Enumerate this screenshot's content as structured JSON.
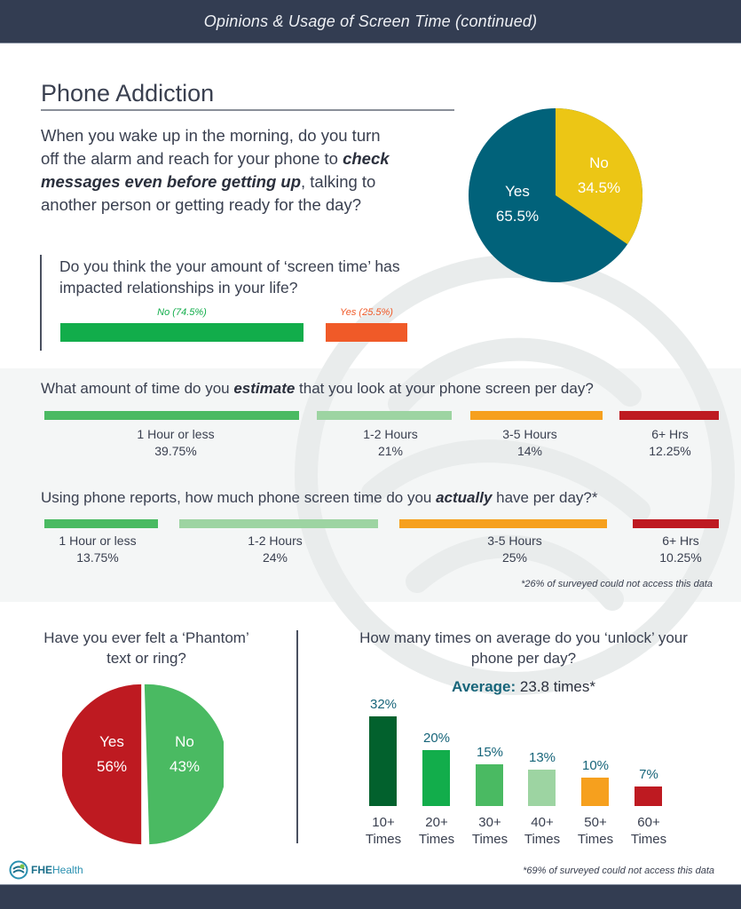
{
  "header": {
    "title": "Opinions & Usage of Screen Time (continued)"
  },
  "section": {
    "title": "Phone Addiction"
  },
  "wake_question": {
    "text_before": "When you wake up in the morning, do you turn off the alarm and reach for your phone to ",
    "emphasis": "check messages even before getting up",
    "text_after": ", talking to another person or getting ready for the day?"
  },
  "relationships_question": {
    "text": "Do you think the your amount of ‘screen time’ has impacted relationships in your life?",
    "no_label": "No (74.5%)",
    "yes_label": "Yes (25.5%)"
  },
  "estimate_question": {
    "text_before": "What amount of time do you ",
    "emphasis": "estimate",
    "text_after": " that you look at your phone screen per day?"
  },
  "actual_question": {
    "text_before": "Using phone reports, how much phone screen time do you ",
    "emphasis": "actually",
    "text_after": " have per day?*",
    "footnote": "*26% of surveyed could not access this data"
  },
  "phantom_question": {
    "text": "Have you ever felt a ‘Phantom’ text or ring?"
  },
  "unlock_question": {
    "text": "How many times on average do you ‘unlock’ your phone per day?",
    "average_key": "Average:",
    "average_value": " 23.8 times*",
    "footnote": "*69% of surveyed could not access this data"
  },
  "logo": {
    "bold": "FHE",
    "regular": "Health"
  },
  "colors": {
    "header_bg": "#333d52",
    "teal": "#01627a",
    "yellow": "#ecc615",
    "green_bright": "#12ad4b",
    "orange_red": "#f05a28",
    "green": "#4aba62",
    "green_light": "#9dd4a2",
    "orange": "#f6a01e",
    "red": "#be1a21",
    "green_dark": "#02612d"
  },
  "chart_data": [
    {
      "type": "pie",
      "title": "When you wake up in the morning, do you turn off the alarm and reach for your phone to check messages even before getting up, talking to another person or getting ready for the day?",
      "categories": [
        "Yes",
        "No"
      ],
      "values": [
        65.5,
        34.5
      ],
      "labels": [
        "Yes",
        "No"
      ],
      "value_labels": [
        "65.5%",
        "34.5%"
      ],
      "colors": [
        "#01627a",
        "#ecc615"
      ]
    },
    {
      "type": "bar",
      "orientation": "horizontal-stacked",
      "title": "Do you think the your amount of 'screen time' has impacted relationships in your life?",
      "categories": [
        "No",
        "Yes"
      ],
      "values": [
        74.5,
        25.5
      ],
      "colors": [
        "#12ad4b",
        "#f05a28"
      ]
    },
    {
      "type": "bar",
      "orientation": "horizontal-segmented",
      "title": "What amount of time do you estimate that you look at your phone screen per day?",
      "categories": [
        "1 Hour or less",
        "1-2 Hours",
        "3-5 Hours",
        "6+ Hrs"
      ],
      "values": [
        39.75,
        21,
        14,
        12.25
      ],
      "value_labels": [
        "39.75%",
        "21%",
        "14%",
        "12.25%"
      ],
      "colors": [
        "#4aba62",
        "#9dd4a2",
        "#f6a01e",
        "#be1a21"
      ]
    },
    {
      "type": "bar",
      "orientation": "horizontal-segmented",
      "title": "Using phone reports, how much phone screen time do you actually have per day?*",
      "categories": [
        "1 Hour or less",
        "1-2 Hours",
        "3-5 Hours",
        "6+ Hrs"
      ],
      "values": [
        13.75,
        24,
        25,
        10.25
      ],
      "value_labels": [
        "13.75%",
        "24%",
        "25%",
        "10.25%"
      ],
      "colors": [
        "#4aba62",
        "#9dd4a2",
        "#f6a01e",
        "#be1a21"
      ],
      "annotation": "*26% of surveyed could not access this data"
    },
    {
      "type": "pie",
      "title": "Have you ever felt a 'Phantom' text or ring?",
      "categories": [
        "Yes",
        "No"
      ],
      "values": [
        56,
        43
      ],
      "value_labels": [
        "56%",
        "43%"
      ],
      "colors": [
        "#be1a21",
        "#4aba62"
      ]
    },
    {
      "type": "bar",
      "title": "How many times on average do you 'unlock' your phone per day?",
      "subtitle": "Average: 23.8 times*",
      "categories": [
        "10+ Times",
        "20+ Times",
        "30+ Times",
        "40+ Times",
        "50+ Times",
        "60+ Times"
      ],
      "category_lines": [
        [
          "10+",
          "Times"
        ],
        [
          "20+",
          "Times"
        ],
        [
          "30+",
          "Times"
        ],
        [
          "40+",
          "Times"
        ],
        [
          "50+",
          "Times"
        ],
        [
          "60+",
          "Times"
        ]
      ],
      "values": [
        32,
        20,
        15,
        13,
        10,
        7
      ],
      "value_labels": [
        "32%",
        "20%",
        "15%",
        "13%",
        "10%",
        "7%"
      ],
      "colors": [
        "#02612d",
        "#12ad4b",
        "#4aba62",
        "#9dd4a2",
        "#f6a01e",
        "#be1a21"
      ],
      "xlabel": "",
      "ylabel": "",
      "grid": false,
      "annotation": "*69% of surveyed could not access this data"
    }
  ]
}
